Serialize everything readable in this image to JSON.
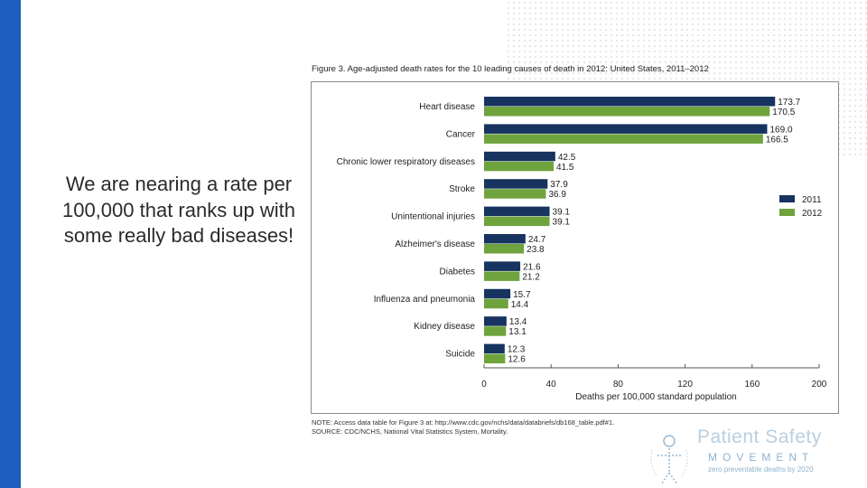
{
  "slide": {
    "headline": "We are nearing a rate per 100,000 that ranks up with some really bad diseases!"
  },
  "chart_data": {
    "type": "bar",
    "orientation": "horizontal",
    "title": "Figure 3. Age-adjusted death rates for the 10 leading causes of death in 2012: United States, 2011–2012",
    "xlabel": "Deaths per 100,000 standard population",
    "ylabel": "",
    "xlim": [
      0,
      200
    ],
    "xticks": [
      0,
      40,
      80,
      120,
      160,
      200
    ],
    "categories": [
      "Heart disease",
      "Cancer",
      "Chronic lower respiratory diseases",
      "Stroke",
      "Unintentional injuries",
      "Alzheimer's disease",
      "Diabetes",
      "Influenza and pneumonia",
      "Kidney disease",
      "Suicide"
    ],
    "series": [
      {
        "name": "2011",
        "color": "#17335f",
        "values": [
          173.7,
          169.0,
          42.5,
          37.9,
          39.1,
          24.7,
          21.6,
          15.7,
          13.4,
          12.3
        ],
        "labels": [
          "173.7",
          "169.0",
          "42.5",
          "37.9",
          "39.1",
          "24.7",
          "21.6",
          "15.7",
          "13.4",
          "12.3"
        ]
      },
      {
        "name": "2012",
        "color": "#6fa33e",
        "values": [
          170.5,
          166.5,
          41.5,
          36.9,
          39.1,
          23.8,
          21.2,
          14.4,
          13.1,
          12.6
        ],
        "labels": [
          "170.5",
          "166.5",
          "41.5",
          "36.9",
          "39.1",
          "23.8",
          "21.2",
          "14.4",
          "13.1",
          "12.6"
        ]
      }
    ],
    "legend_position": "right",
    "grid": false
  },
  "notes": {
    "note": "NOTE: Access data table for Figure 3 at: http://www.cdc.gov/nchs/data/databriefs/db168_table.pdf#1.",
    "source": "SOURCE: CDC/NCHS, National Vital Statistics System, Mortality."
  },
  "logo": {
    "name": "Patient Safety",
    "sub": "MOVEMENT",
    "tagline": "zero preventable deaths by 2020",
    "colors": {
      "primary": "#b9cfe0",
      "secondary": "#8fb3cf"
    }
  },
  "theme": {
    "accent_bar": "#1d5fbf"
  }
}
